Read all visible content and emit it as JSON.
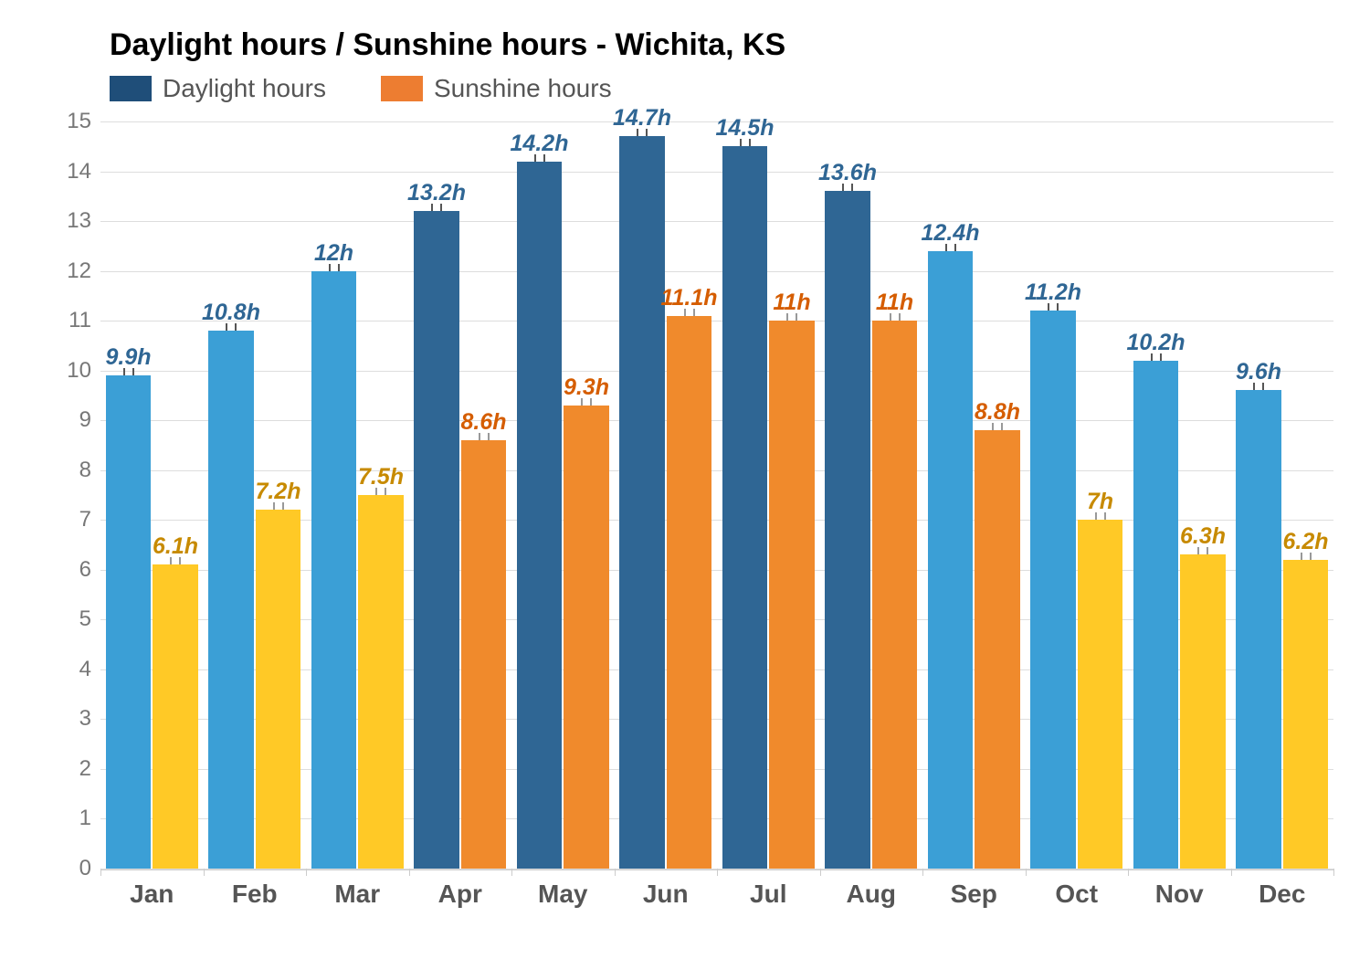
{
  "chart": {
    "type": "bar",
    "title": "Daylight hours / Sunshine hours - Wichita, KS",
    "title_fontsize": 34,
    "title_color": "#000000",
    "background_color": "#ffffff",
    "grid_color": "#dddddd",
    "axis_color": "#cccccc",
    "y_label_color": "#777777",
    "x_label_color": "#555555",
    "x_label_fontsize": 28,
    "y_label_fontsize": 24,
    "bar_label_fontsize": 25,
    "legend_fontsize": 28,
    "ylim": [
      0,
      15
    ],
    "ytick_step": 1,
    "categories": [
      "Jan",
      "Feb",
      "Mar",
      "Apr",
      "May",
      "Jun",
      "Jul",
      "Aug",
      "Sep",
      "Oct",
      "Nov",
      "Dec"
    ],
    "series": [
      {
        "name": "Daylight hours",
        "legend_color": "#1f4e79",
        "highlight_threshold": 13,
        "bar_color_default": "#3b9fd6",
        "bar_color_highlight": "#2f6694",
        "label_color_default": "#2f6694",
        "label_color_highlight": "#2f6694",
        "error_color": "#555555",
        "values": [
          9.9,
          10.8,
          12,
          13.2,
          14.2,
          14.7,
          14.5,
          13.6,
          12.4,
          11.2,
          10.2,
          9.6
        ],
        "labels": [
          "9.9h",
          "10.8h",
          "12h",
          "13.2h",
          "14.2h",
          "14.7h",
          "14.5h",
          "13.6h",
          "12.4h",
          "11.2h",
          "10.2h",
          "9.6h"
        ]
      },
      {
        "name": "Sunshine hours",
        "legend_color": "#ed7d31",
        "highlight_threshold": 8,
        "bar_color_default": "#ffc926",
        "bar_color_highlight": "#f08a2c",
        "label_color_default": "#c78a00",
        "label_color_highlight": "#d55d00",
        "error_color": "#999999",
        "values": [
          6.1,
          7.2,
          7.5,
          8.6,
          9.3,
          11.1,
          11,
          11,
          8.8,
          7,
          6.3,
          6.2
        ],
        "labels": [
          "6.1h",
          "7.2h",
          "7.5h",
          "8.6h",
          "9.3h",
          "11.1h",
          "11h",
          "11h",
          "8.8h",
          "7h",
          "6.3h",
          "6.2h"
        ]
      }
    ]
  }
}
